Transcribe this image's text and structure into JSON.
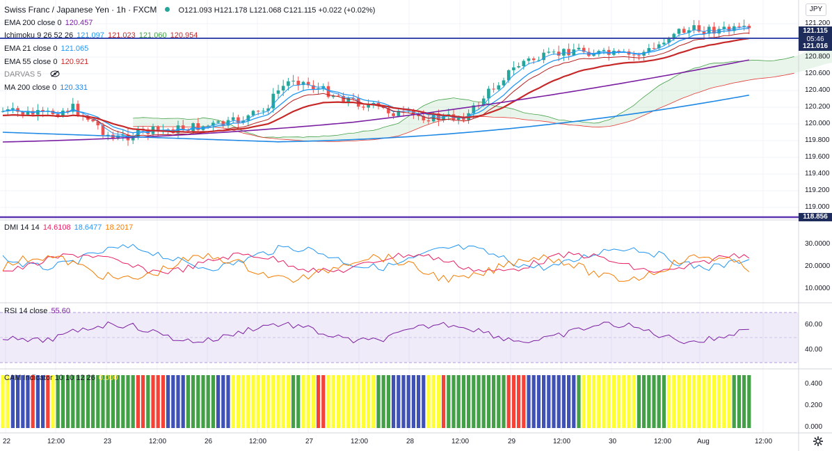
{
  "header": {
    "symbol": "Swiss Franc / Japanese Yen · 1h · FXCM",
    "ohlc": "O121.093  H121.178  L121.068  C121.115  +0.022 (+0.02%)",
    "currency_button": "JPY"
  },
  "legends": {
    "ema200": {
      "name": "EMA 200 close 0",
      "value": "120.457"
    },
    "ichimoku": {
      "name": "Ichimoku 9 26 52 26",
      "v1": "121.097",
      "v2": "121.023",
      "v3": "121.060",
      "v4": "120.954"
    },
    "ema21": {
      "name": "EMA 21 close 0",
      "value": "121.065"
    },
    "ema55": {
      "name": "EMA 55 close 0",
      "value": "120.921"
    },
    "darvas": {
      "name": "DARVAS 5"
    },
    "ma200": {
      "name": "MA 200 close 0",
      "value": "120.331"
    },
    "dmi": {
      "name": "DMI 14 14",
      "v1": "14.6108",
      "v2": "18.6477",
      "v3": "18.2017"
    },
    "rsi": {
      "name": "RSI 14 close",
      "value": "55.60"
    },
    "cam": {
      "name": "CAM Indicator 10 10 12 26",
      "value": "0.000"
    }
  },
  "price_axis": {
    "labels": [
      "121.200",
      "121.000",
      "120.800",
      "120.600",
      "120.400",
      "120.200",
      "120.000",
      "119.800",
      "119.600",
      "119.400",
      "119.200",
      "119.000"
    ],
    "last_price": "121.115",
    "countdown": "05:46",
    "level_1": "121.016",
    "level_2": "118.856"
  },
  "dmi_axis": {
    "labels": [
      "30.0000",
      "20.0000",
      "10.0000"
    ]
  },
  "rsi_axis": {
    "labels": [
      "60.00",
      "40.00"
    ]
  },
  "cam_axis": {
    "labels": [
      "0.400",
      "0.200",
      "0.000"
    ]
  },
  "time_axis": {
    "labels": [
      "22",
      "12:00",
      "23",
      "12:00",
      "26",
      "12:00",
      "27",
      "12:00",
      "28",
      "12:00",
      "29",
      "12:00",
      "30",
      "12:00",
      "Aug",
      "12:00"
    ]
  },
  "colors": {
    "up": "#26a69a",
    "down": "#ef5350",
    "ema200": "#7b1fa2",
    "ema21": "#2196f3",
    "ema55": "#c62828",
    "ma200": "#1e88e5",
    "dmi_plus": "#2196f3",
    "dmi_minus": "#e91e63",
    "adx": "#f57c00",
    "rsi": "#7b1fa2",
    "cam_green": "#43a047",
    "cam_red": "#f44336",
    "cam_blue": "#3f51b5",
    "cam_yellow": "#ffff33",
    "tag_blue": "#1e2c5c"
  },
  "icons": {
    "darvas": "eye-crossed-icon",
    "settings": "gear-icon"
  }
}
